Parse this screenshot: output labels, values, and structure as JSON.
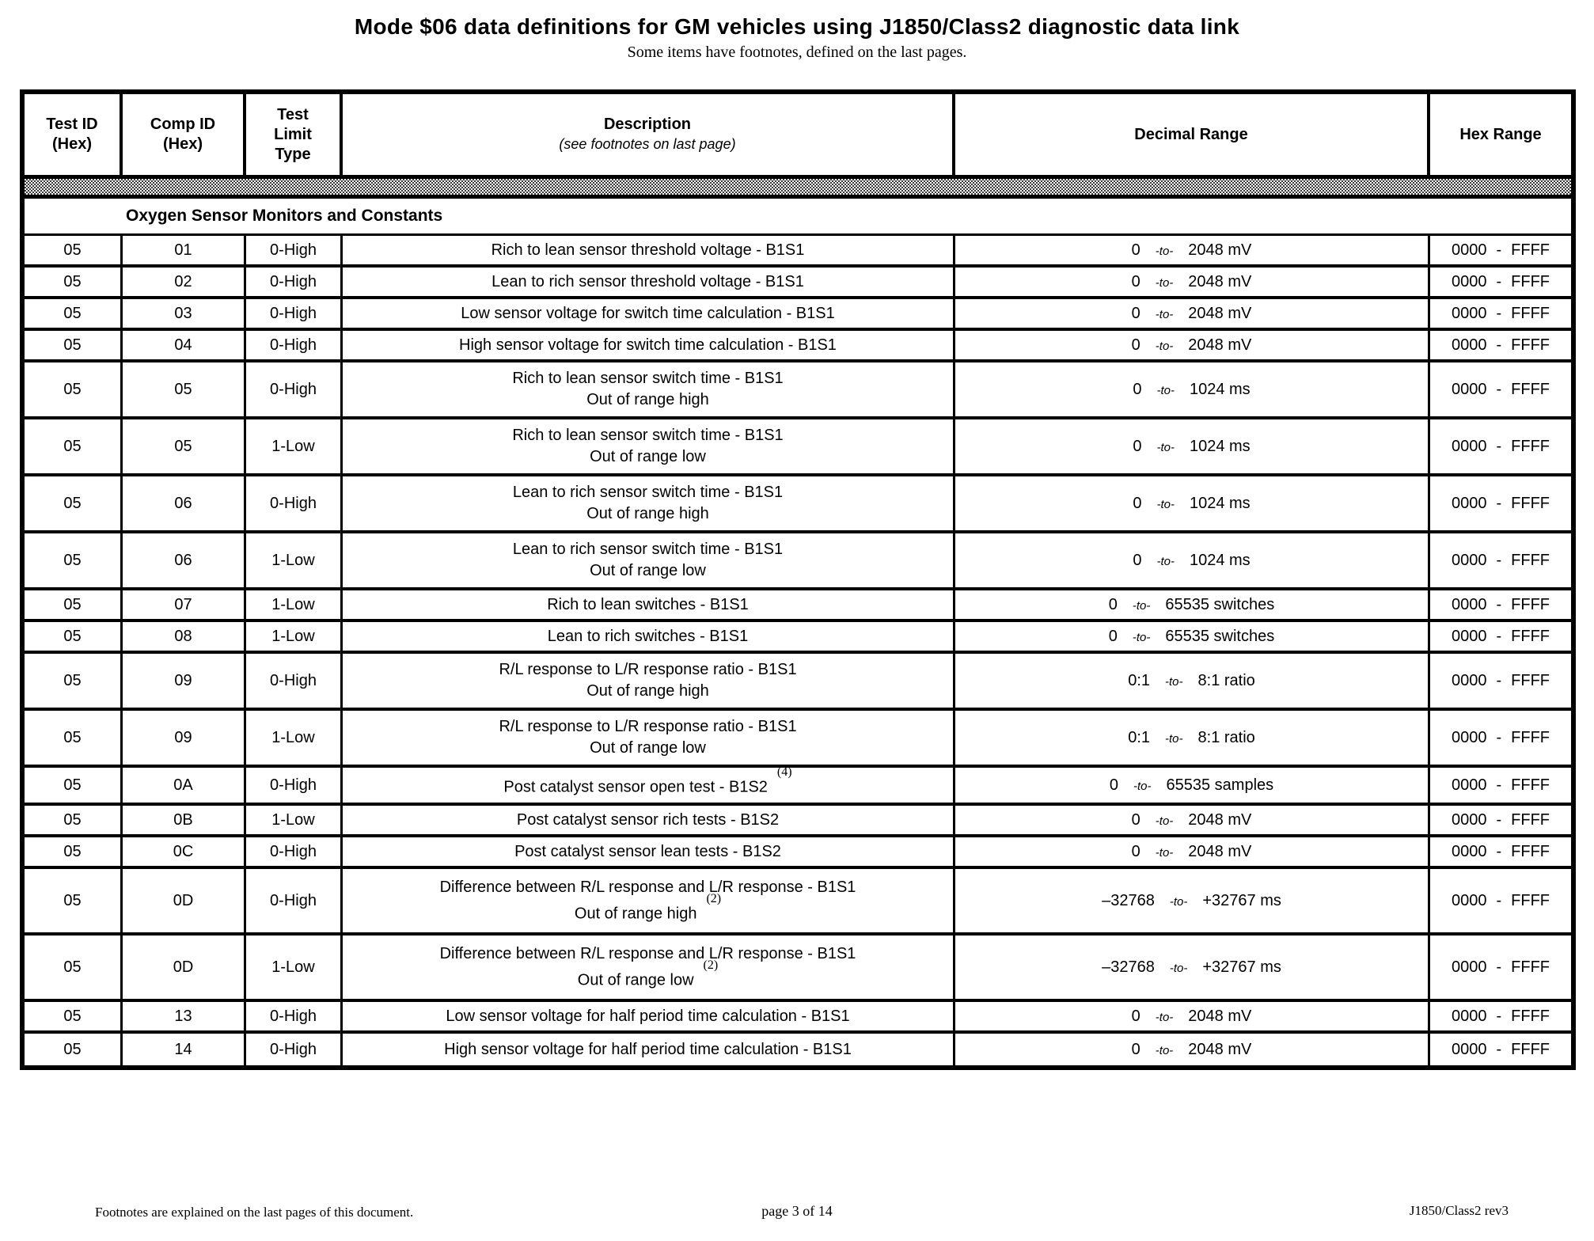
{
  "page": {
    "title": "Mode $06 data definitions for GM vehicles using J1850/Class2  diagnostic data link",
    "subtitle": "Some items have footnotes, defined on the last pages."
  },
  "colors": {
    "ink": "#000000",
    "paper": "#ffffff",
    "separator_gray": "#808080"
  },
  "table": {
    "columns": [
      {
        "name": "Test ID (Hex)",
        "lines": [
          "Test ID",
          "(Hex)"
        ]
      },
      {
        "name": "Comp ID (Hex)",
        "lines": [
          "Comp ID",
          "(Hex)"
        ]
      },
      {
        "name": "Test Limit Type",
        "lines": [
          "Test",
          "Limit",
          "Type"
        ]
      },
      {
        "name": "Description",
        "lines": [
          "Description"
        ],
        "subnote": "(see footnotes on last page)"
      },
      {
        "name": "Decimal Range",
        "lines": [
          "Decimal Range"
        ]
      },
      {
        "name": "Hex Range",
        "lines": [
          "Hex Range"
        ]
      }
    ],
    "section": "Oxygen Sensor Monitors and Constants",
    "rows": [
      {
        "test_id": "05",
        "comp_id": "01",
        "limit_type": "0-High",
        "description": [
          "Rich to lean sensor threshold voltage - B1S1"
        ],
        "decimal": [
          "0",
          "-to-",
          "2048 mV"
        ],
        "hex": [
          "0000",
          "-",
          "FFFF"
        ]
      },
      {
        "test_id": "05",
        "comp_id": "02",
        "limit_type": "0-High",
        "description": [
          "Lean to rich sensor threshold voltage - B1S1"
        ],
        "decimal": [
          "0",
          "-to-",
          "2048 mV"
        ],
        "hex": [
          "0000",
          "-",
          "FFFF"
        ]
      },
      {
        "test_id": "05",
        "comp_id": "03",
        "limit_type": "0-High",
        "description": [
          "Low sensor voltage for switch time calculation - B1S1"
        ],
        "decimal": [
          "0",
          "-to-",
          "2048 mV"
        ],
        "hex": [
          "0000",
          "-",
          "FFFF"
        ]
      },
      {
        "test_id": "05",
        "comp_id": "04",
        "limit_type": "0-High",
        "description": [
          "High sensor voltage for switch time calculation - B1S1"
        ],
        "decimal": [
          "0",
          "-to-",
          "2048 mV"
        ],
        "hex": [
          "0000",
          "-",
          "FFFF"
        ]
      },
      {
        "test_id": "05",
        "comp_id": "05",
        "limit_type": "0-High",
        "description": [
          "Rich to lean sensor switch time - B1S1",
          "Out of range high"
        ],
        "decimal": [
          "0",
          "-to-",
          "1024 ms"
        ],
        "hex": [
          "0000",
          "-",
          "FFFF"
        ]
      },
      {
        "test_id": "05",
        "comp_id": "05",
        "limit_type": "1-Low",
        "description": [
          "Rich to lean sensor switch time - B1S1",
          "Out of range low"
        ],
        "decimal": [
          "0",
          "-to-",
          "1024 ms"
        ],
        "hex": [
          "0000",
          "-",
          "FFFF"
        ]
      },
      {
        "test_id": "05",
        "comp_id": "06",
        "limit_type": "0-High",
        "description": [
          "Lean to rich sensor switch time - B1S1",
          "Out of range high"
        ],
        "decimal": [
          "0",
          "-to-",
          "1024 ms"
        ],
        "hex": [
          "0000",
          "-",
          "FFFF"
        ]
      },
      {
        "test_id": "05",
        "comp_id": "06",
        "limit_type": "1-Low",
        "description": [
          "Lean to rich sensor switch time - B1S1",
          "Out of range low"
        ],
        "decimal": [
          "0",
          "-to-",
          "1024 ms"
        ],
        "hex": [
          "0000",
          "-",
          "FFFF"
        ]
      },
      {
        "test_id": "05",
        "comp_id": "07",
        "limit_type": "1-Low",
        "description": [
          "Rich to lean switches - B1S1"
        ],
        "decimal": [
          "0",
          "-to-",
          "65535 switches"
        ],
        "hex": [
          "0000",
          "-",
          "FFFF"
        ]
      },
      {
        "test_id": "05",
        "comp_id": "08",
        "limit_type": "1-Low",
        "description": [
          "Lean to rich switches - B1S1"
        ],
        "decimal": [
          "0",
          "-to-",
          "65535 switches"
        ],
        "hex": [
          "0000",
          "-",
          "FFFF"
        ]
      },
      {
        "test_id": "05",
        "comp_id": "09",
        "limit_type": "0-High",
        "description": [
          "R/L response to L/R response ratio - B1S1",
          "Out of range high"
        ],
        "decimal": [
          "0:1",
          "-to-",
          "8:1 ratio"
        ],
        "hex": [
          "0000",
          "-",
          "FFFF"
        ]
      },
      {
        "test_id": "05",
        "comp_id": "09",
        "limit_type": "1-Low",
        "description": [
          "R/L response to L/R response ratio - B1S1",
          "Out of range low"
        ],
        "decimal": [
          "0:1",
          "-to-",
          "8:1 ratio"
        ],
        "hex": [
          "0000",
          "-",
          "FFFF"
        ]
      },
      {
        "test_id": "05",
        "comp_id": "0A",
        "limit_type": "0-High",
        "description": [
          "Post catalyst sensor open test - B1S2"
        ],
        "footnote": "(4)",
        "decimal": [
          "0",
          "-to-",
          "65535 samples"
        ],
        "hex": [
          "0000",
          "-",
          "FFFF"
        ]
      },
      {
        "test_id": "05",
        "comp_id": "0B",
        "limit_type": "1-Low",
        "description": [
          "Post catalyst sensor rich tests - B1S2"
        ],
        "decimal": [
          "0",
          "-to-",
          "2048 mV"
        ],
        "hex": [
          "0000",
          "-",
          "FFFF"
        ]
      },
      {
        "test_id": "05",
        "comp_id": "0C",
        "limit_type": "0-High",
        "description": [
          "Post catalyst sensor lean tests - B1S2"
        ],
        "decimal": [
          "0",
          "-to-",
          "2048 mV"
        ],
        "hex": [
          "0000",
          "-",
          "FFFF"
        ]
      },
      {
        "test_id": "05",
        "comp_id": "0D",
        "limit_type": "0-High",
        "description": [
          "Difference between R/L response and L/R response - B1S1",
          "Out of range high"
        ],
        "footnote": "(2)",
        "decimal": [
          "–32768",
          "-to-",
          "+32767 ms"
        ],
        "hex": [
          "0000",
          "-",
          "FFFF"
        ]
      },
      {
        "test_id": "05",
        "comp_id": "0D",
        "limit_type": "1-Low",
        "description": [
          "Difference between R/L response and L/R response - B1S1",
          "Out of range low"
        ],
        "footnote": "(2)",
        "decimal": [
          "–32768",
          "-to-",
          "+32767 ms"
        ],
        "hex": [
          "0000",
          "-",
          "FFFF"
        ]
      },
      {
        "test_id": "05",
        "comp_id": "13",
        "limit_type": "0-High",
        "description": [
          "Low sensor voltage for half period time calculation - B1S1"
        ],
        "decimal": [
          "0",
          "-to-",
          "2048 mV"
        ],
        "hex": [
          "0000",
          "-",
          "FFFF"
        ]
      },
      {
        "test_id": "05",
        "comp_id": "14",
        "limit_type": "0-High",
        "description": [
          "High sensor voltage for half period time calculation - B1S1"
        ],
        "decimal": [
          "0",
          "-to-",
          "2048 mV"
        ],
        "hex": [
          "0000",
          "-",
          "FFFF"
        ]
      }
    ]
  },
  "footer": {
    "left": "Footnotes are explained on the last pages of this document.",
    "center": "page 3 of 14",
    "right": "J1850/Class2 rev3"
  }
}
